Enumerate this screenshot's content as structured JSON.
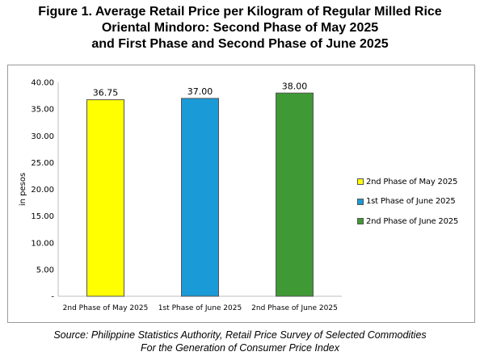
{
  "figure": {
    "title_lines": [
      "Figure 1. Average Retail Price per Kilogram of Regular Milled Rice",
      "Oriental Mindoro: Second Phase of May 2025",
      "and First Phase and Second Phase of June 2025"
    ],
    "source_lines": [
      "Source: Philippine Statistics Authority, Retail Price Survey of Selected Commodities",
      "For the Generation of Consumer Price Index"
    ]
  },
  "chart_data": {
    "type": "bar",
    "categories": [
      "2nd Phase of May 2025",
      "1st Phase of June 2025",
      "2nd Phase of June 2025"
    ],
    "values": [
      36.75,
      37.0,
      38.0
    ],
    "value_labels": [
      "36.75",
      "37.00",
      "38.00"
    ],
    "colors": [
      "#ffff00",
      "#1a9ad6",
      "#3f9a35"
    ],
    "ylabel": "in pesos",
    "xlabel": "",
    "ylim": [
      0,
      40
    ],
    "yticks": [
      {
        "value": 0,
        "label": "-"
      },
      {
        "value": 5,
        "label": "5.00"
      },
      {
        "value": 10,
        "label": "10.00"
      },
      {
        "value": 15,
        "label": "15.00"
      },
      {
        "value": 20,
        "label": "20.00"
      },
      {
        "value": 25,
        "label": "25.00"
      },
      {
        "value": 30,
        "label": "30.00"
      },
      {
        "value": 35,
        "label": "35.00"
      },
      {
        "value": 40,
        "label": "40.00"
      }
    ],
    "grid": false,
    "legend": {
      "position": "right",
      "entries": [
        "2nd Phase of May 2025",
        "1st Phase of June 2025",
        "2nd Phase of June 2025"
      ]
    }
  }
}
